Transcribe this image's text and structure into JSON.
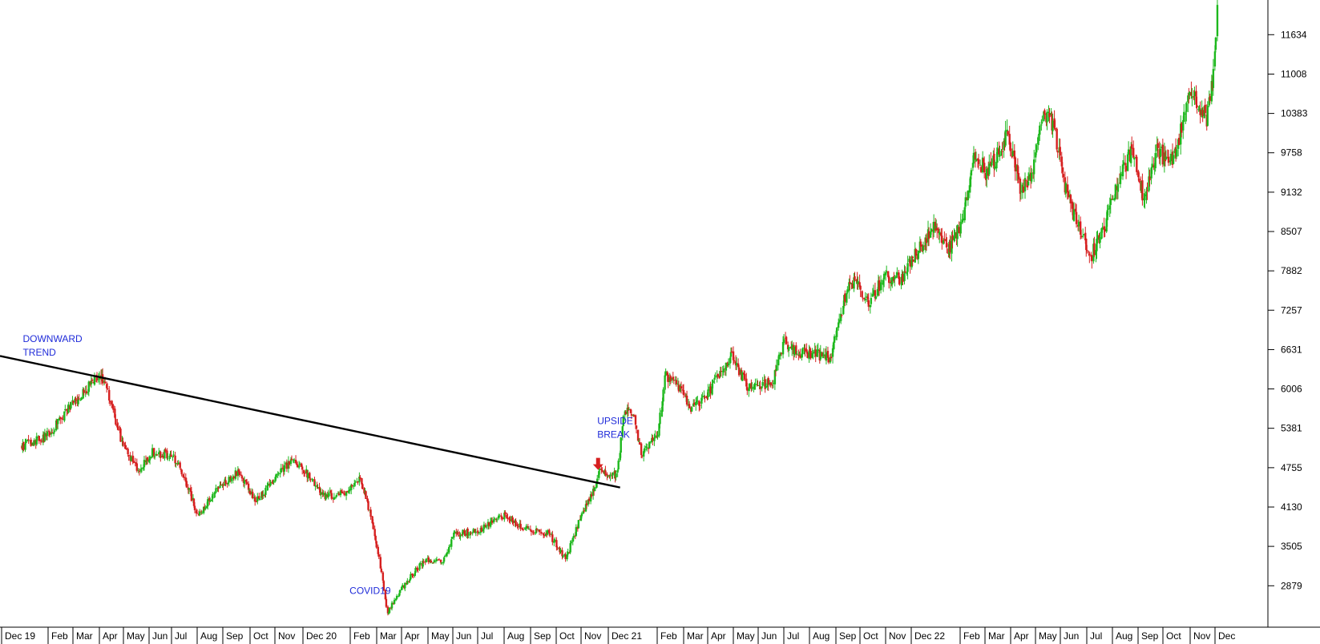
{
  "chart_data": {
    "type": "candlestick",
    "y_ticks": [
      11634,
      11008,
      10383,
      9758,
      9132,
      8507,
      7882,
      7257,
      6631,
      6006,
      5381,
      4755,
      4130,
      3505,
      2879
    ],
    "ylim": [
      2300,
      12200
    ],
    "x_labels": [
      "Dec 19",
      "Feb",
      "Mar",
      "Apr",
      "May",
      "Jun",
      "Jul",
      "Aug",
      "Sep",
      "Oct",
      "Nov",
      "Dec 20",
      "Feb",
      "Mar",
      "Apr",
      "May",
      "Jun",
      "Jul",
      "Aug",
      "Sep",
      "Oct",
      "Nov",
      "Dec 21",
      "Feb",
      "Mar",
      "Apr",
      "May",
      "Jun",
      "Jul",
      "Aug",
      "Sep",
      "Oct",
      "Nov",
      "Dec 22",
      "Feb",
      "Mar",
      "Apr",
      "May",
      "Jun",
      "Jul",
      "Aug",
      "Sep",
      "Oct",
      "Nov",
      "Dec"
    ],
    "close_anchors": [
      {
        "date": "2019-01-01",
        "value": 5100
      },
      {
        "date": "2019-02-01",
        "value": 5250
      },
      {
        "date": "2019-03-01",
        "value": 5700
      },
      {
        "date": "2019-04-01",
        "value": 6150
      },
      {
        "date": "2019-04-10",
        "value": 6200
      },
      {
        "date": "2019-04-25",
        "value": 5600
      },
      {
        "date": "2019-05-05",
        "value": 5100
      },
      {
        "date": "2019-05-25",
        "value": 4700
      },
      {
        "date": "2019-06-10",
        "value": 5000
      },
      {
        "date": "2019-07-05",
        "value": 4950
      },
      {
        "date": "2019-07-20",
        "value": 4600
      },
      {
        "date": "2019-08-05",
        "value": 4000
      },
      {
        "date": "2019-09-05",
        "value": 4500
      },
      {
        "date": "2019-09-25",
        "value": 4700
      },
      {
        "date": "2019-10-15",
        "value": 4200
      },
      {
        "date": "2019-11-10",
        "value": 4600
      },
      {
        "date": "2019-11-30",
        "value": 4900
      },
      {
        "date": "2019-12-15",
        "value": 4700
      },
      {
        "date": "2020-01-05",
        "value": 4300
      },
      {
        "date": "2020-01-31",
        "value": 4350
      },
      {
        "date": "2020-02-20",
        "value": 4600
      },
      {
        "date": "2020-03-05",
        "value": 4000
      },
      {
        "date": "2020-03-15",
        "value": 3300
      },
      {
        "date": "2020-03-25",
        "value": 2450
      },
      {
        "date": "2020-04-15",
        "value": 2900
      },
      {
        "date": "2020-05-10",
        "value": 3300
      },
      {
        "date": "2020-06-01",
        "value": 3250
      },
      {
        "date": "2020-06-15",
        "value": 3700
      },
      {
        "date": "2020-07-15",
        "value": 3750
      },
      {
        "date": "2020-08-15",
        "value": 4000
      },
      {
        "date": "2020-09-10",
        "value": 3800
      },
      {
        "date": "2020-10-10",
        "value": 3700
      },
      {
        "date": "2020-10-30",
        "value": 3300
      },
      {
        "date": "2020-11-15",
        "value": 3900
      },
      {
        "date": "2020-11-30",
        "value": 4300
      },
      {
        "date": "2020-12-10",
        "value": 4700
      },
      {
        "date": "2020-12-25",
        "value": 4650
      },
      {
        "date": "2021-01-01",
        "value": 4650
      },
      {
        "date": "2021-01-10",
        "value": 5700
      },
      {
        "date": "2021-01-20",
        "value": 5600
      },
      {
        "date": "2021-01-31",
        "value": 4950
      },
      {
        "date": "2021-02-20",
        "value": 5300
      },
      {
        "date": "2021-03-01",
        "value": 6250
      },
      {
        "date": "2021-03-20",
        "value": 6000
      },
      {
        "date": "2021-04-01",
        "value": 5700
      },
      {
        "date": "2021-04-20",
        "value": 5900
      },
      {
        "date": "2021-05-10",
        "value": 6300
      },
      {
        "date": "2021-05-20",
        "value": 6550
      },
      {
        "date": "2021-06-10",
        "value": 6050
      },
      {
        "date": "2021-07-10",
        "value": 6100
      },
      {
        "date": "2021-07-25",
        "value": 6750
      },
      {
        "date": "2021-08-10",
        "value": 6600
      },
      {
        "date": "2021-09-05",
        "value": 6550
      },
      {
        "date": "2021-09-20",
        "value": 6500
      },
      {
        "date": "2021-10-10",
        "value": 7600
      },
      {
        "date": "2021-10-20",
        "value": 7700
      },
      {
        "date": "2021-11-05",
        "value": 7350
      },
      {
        "date": "2021-11-25",
        "value": 7800
      },
      {
        "date": "2021-12-15",
        "value": 7750
      },
      {
        "date": "2022-01-10",
        "value": 8300
      },
      {
        "date": "2022-01-25",
        "value": 8600
      },
      {
        "date": "2022-02-10",
        "value": 8200
      },
      {
        "date": "2022-03-01",
        "value": 8650
      },
      {
        "date": "2022-03-15",
        "value": 9800
      },
      {
        "date": "2022-03-31",
        "value": 9400
      },
      {
        "date": "2022-04-15",
        "value": 9800
      },
      {
        "date": "2022-04-25",
        "value": 10100
      },
      {
        "date": "2022-05-10",
        "value": 9200
      },
      {
        "date": "2022-05-25",
        "value": 9400
      },
      {
        "date": "2022-06-05",
        "value": 10300
      },
      {
        "date": "2022-06-20",
        "value": 10250
      },
      {
        "date": "2022-07-05",
        "value": 9200
      },
      {
        "date": "2022-07-20",
        "value": 8600
      },
      {
        "date": "2022-08-05",
        "value": 8100
      },
      {
        "date": "2022-08-25",
        "value": 8700
      },
      {
        "date": "2022-09-10",
        "value": 9400
      },
      {
        "date": "2022-09-25",
        "value": 9800
      },
      {
        "date": "2022-10-10",
        "value": 9000
      },
      {
        "date": "2022-10-25",
        "value": 9800
      },
      {
        "date": "2022-11-10",
        "value": 9600
      },
      {
        "date": "2022-11-20",
        "value": 9900
      },
      {
        "date": "2022-12-05",
        "value": 10700
      },
      {
        "date": "2022-12-15",
        "value": 10500
      },
      {
        "date": "2022-12-25",
        "value": 10300
      },
      {
        "date": "2023-01-02",
        "value": 10900
      },
      {
        "date": "2023-01-08",
        "value": 12100
      }
    ],
    "trendline": {
      "start": {
        "date": "2018-12-05",
        "value": 6530
      },
      "end": {
        "date": "2021-01-04",
        "value": 4440
      }
    },
    "annotations": [
      {
        "lines": [
          "DOWNWARD",
          "TREND"
        ],
        "date": "2019-01-02",
        "value": 6750
      },
      {
        "lines": [
          "UPSIDE",
          "BREAK"
        ],
        "date": "2020-12-07",
        "value": 5450
      },
      {
        "lines": [
          "COVID19"
        ],
        "date": "2020-02-07",
        "value": 2750
      }
    ],
    "break_arrow": {
      "date": "2020-12-08",
      "value": 4720
    },
    "colors": {
      "up": "#1db81d",
      "down": "#d61f1f",
      "trend": "#000000",
      "annotation": "#1f2bd9",
      "axis": "#000000"
    }
  }
}
